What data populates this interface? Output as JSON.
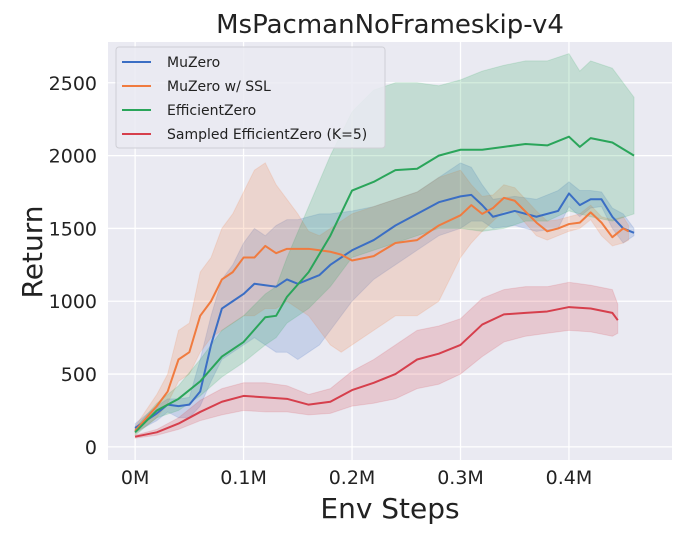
{
  "chart_data": {
    "type": "line",
    "title": "MsPacmanNoFrameskip-v4",
    "xlabel": "Env Steps",
    "ylabel": "Return",
    "xlim": [
      -0.025,
      0.495
    ],
    "ylim": [
      -90,
      2780
    ],
    "xticks": [
      0,
      0.1,
      0.2,
      0.3,
      0.4
    ],
    "xtick_labels": [
      "0M",
      "0.1M",
      "0.2M",
      "0.3M",
      "0.4M"
    ],
    "yticks": [
      0,
      500,
      1000,
      1500,
      2000,
      2500
    ],
    "ytick_labels": [
      "0",
      "500",
      "1000",
      "1500",
      "2000",
      "2500"
    ],
    "grid": true,
    "legend_placement": "top-left",
    "x_units": "million env steps",
    "point_format": [
      "x",
      "mean",
      "lower",
      "upper"
    ],
    "series": [
      {
        "name": "MuZero",
        "color": "#3b6ec4",
        "points": [
          [
            0,
            130,
            100,
            160
          ],
          [
            0.02,
            230,
            180,
            280
          ],
          [
            0.03,
            290,
            240,
            330
          ],
          [
            0.04,
            280,
            200,
            330
          ],
          [
            0.05,
            290,
            200,
            340
          ],
          [
            0.06,
            380,
            280,
            600
          ],
          [
            0.07,
            700,
            450,
            900
          ],
          [
            0.08,
            950,
            600,
            1150
          ],
          [
            0.09,
            1000,
            650,
            1250
          ],
          [
            0.1,
            1050,
            700,
            1400
          ],
          [
            0.11,
            1120,
            750,
            1500
          ],
          [
            0.12,
            1110,
            700,
            1450
          ],
          [
            0.13,
            1100,
            650,
            1520
          ],
          [
            0.14,
            1150,
            650,
            1560
          ],
          [
            0.15,
            1120,
            600,
            1560
          ],
          [
            0.16,
            1150,
            650,
            1580
          ],
          [
            0.17,
            1180,
            700,
            1600
          ],
          [
            0.18,
            1250,
            800,
            1600
          ],
          [
            0.2,
            1350,
            1000,
            1620
          ],
          [
            0.22,
            1420,
            1150,
            1650
          ],
          [
            0.24,
            1520,
            1250,
            1700
          ],
          [
            0.26,
            1600,
            1350,
            1750
          ],
          [
            0.28,
            1680,
            1450,
            1850
          ],
          [
            0.3,
            1720,
            1500,
            1950
          ],
          [
            0.31,
            1730,
            1550,
            1920
          ],
          [
            0.32,
            1660,
            1550,
            1800
          ],
          [
            0.33,
            1580,
            1500,
            1700
          ],
          [
            0.35,
            1620,
            1520,
            1720
          ],
          [
            0.37,
            1580,
            1480,
            1700
          ],
          [
            0.39,
            1620,
            1500,
            1760
          ],
          [
            0.4,
            1740,
            1650,
            1820
          ],
          [
            0.41,
            1660,
            1580,
            1760
          ],
          [
            0.42,
            1700,
            1640,
            1760
          ],
          [
            0.43,
            1700,
            1650,
            1750
          ],
          [
            0.44,
            1580,
            1500,
            1640
          ],
          [
            0.45,
            1500,
            1400,
            1600
          ],
          [
            0.46,
            1470,
            1450,
            1500
          ]
        ]
      },
      {
        "name": "MuZero w/ SSL",
        "color": "#f07b3f",
        "points": [
          [
            0,
            110,
            90,
            140
          ],
          [
            0.02,
            280,
            200,
            360
          ],
          [
            0.03,
            380,
            300,
            500
          ],
          [
            0.04,
            600,
            450,
            800
          ],
          [
            0.05,
            650,
            500,
            850
          ],
          [
            0.06,
            900,
            650,
            1200
          ],
          [
            0.07,
            1000,
            750,
            1300
          ],
          [
            0.08,
            1150,
            800,
            1500
          ],
          [
            0.09,
            1200,
            850,
            1600
          ],
          [
            0.1,
            1300,
            900,
            1750
          ],
          [
            0.11,
            1300,
            900,
            1900
          ],
          [
            0.12,
            1380,
            950,
            1950
          ],
          [
            0.13,
            1330,
            950,
            1800
          ],
          [
            0.14,
            1360,
            1000,
            1700
          ],
          [
            0.15,
            1360,
            950,
            1600
          ],
          [
            0.16,
            1360,
            900,
            1480
          ],
          [
            0.17,
            1350,
            800,
            1450
          ],
          [
            0.18,
            1340,
            700,
            1500
          ],
          [
            0.19,
            1320,
            650,
            1550
          ],
          [
            0.2,
            1280,
            700,
            1600
          ],
          [
            0.22,
            1310,
            800,
            1650
          ],
          [
            0.24,
            1400,
            900,
            1700
          ],
          [
            0.26,
            1420,
            900,
            1750
          ],
          [
            0.28,
            1520,
            1000,
            1850
          ],
          [
            0.3,
            1590,
            1300,
            1900
          ],
          [
            0.31,
            1660,
            1400,
            1800
          ],
          [
            0.32,
            1600,
            1480,
            1720
          ],
          [
            0.33,
            1640,
            1550,
            1730
          ],
          [
            0.34,
            1710,
            1620,
            1800
          ],
          [
            0.35,
            1690,
            1620,
            1780
          ],
          [
            0.37,
            1540,
            1450,
            1620
          ],
          [
            0.38,
            1480,
            1420,
            1550
          ],
          [
            0.39,
            1500,
            1450,
            1560
          ],
          [
            0.4,
            1530,
            1480,
            1580
          ],
          [
            0.41,
            1540,
            1500,
            1600
          ],
          [
            0.42,
            1610,
            1560,
            1660
          ],
          [
            0.43,
            1540,
            1450,
            1580
          ],
          [
            0.44,
            1440,
            1380,
            1560
          ],
          [
            0.45,
            1500,
            1400,
            1580
          ],
          [
            0.455,
            1480,
            1420,
            1520
          ]
        ]
      },
      {
        "name": "EfficientZero",
        "color": "#2aa55a",
        "points": [
          [
            0,
            100,
            80,
            130
          ],
          [
            0.02,
            250,
            200,
            300
          ],
          [
            0.04,
            330,
            250,
            420
          ],
          [
            0.06,
            450,
            350,
            600
          ],
          [
            0.08,
            620,
            480,
            800
          ],
          [
            0.1,
            720,
            580,
            900
          ],
          [
            0.12,
            890,
            700,
            1050
          ],
          [
            0.13,
            900,
            750,
            1100
          ],
          [
            0.14,
            1030,
            850,
            1300
          ],
          [
            0.16,
            1200,
            950,
            1650
          ],
          [
            0.18,
            1450,
            1100,
            2000
          ],
          [
            0.2,
            1760,
            1300,
            2300
          ],
          [
            0.22,
            1820,
            1350,
            2450
          ],
          [
            0.24,
            1900,
            1400,
            2500
          ],
          [
            0.26,
            1910,
            1450,
            2500
          ],
          [
            0.28,
            2000,
            1500,
            2480
          ],
          [
            0.3,
            2040,
            1500,
            2520
          ],
          [
            0.32,
            2040,
            1480,
            2580
          ],
          [
            0.34,
            2060,
            1500,
            2620
          ],
          [
            0.36,
            2080,
            1550,
            2650
          ],
          [
            0.38,
            2070,
            1550,
            2650
          ],
          [
            0.4,
            2130,
            1620,
            2700
          ],
          [
            0.41,
            2060,
            1600,
            2580
          ],
          [
            0.42,
            2120,
            1580,
            2650
          ],
          [
            0.44,
            2090,
            1550,
            2600
          ],
          [
            0.46,
            2000,
            1600,
            2400
          ]
        ]
      },
      {
        "name": "Sampled EfficientZero (K=5)",
        "color": "#d63f4c",
        "points": [
          [
            0,
            70,
            60,
            80
          ],
          [
            0.02,
            100,
            80,
            120
          ],
          [
            0.04,
            160,
            120,
            200
          ],
          [
            0.06,
            240,
            180,
            320
          ],
          [
            0.08,
            310,
            220,
            400
          ],
          [
            0.1,
            350,
            250,
            440
          ],
          [
            0.12,
            340,
            240,
            440
          ],
          [
            0.14,
            330,
            240,
            420
          ],
          [
            0.16,
            290,
            220,
            360
          ],
          [
            0.18,
            310,
            230,
            400
          ],
          [
            0.2,
            390,
            280,
            520
          ],
          [
            0.22,
            440,
            300,
            600
          ],
          [
            0.24,
            500,
            330,
            700
          ],
          [
            0.26,
            600,
            400,
            800
          ],
          [
            0.28,
            640,
            430,
            830
          ],
          [
            0.3,
            700,
            500,
            880
          ],
          [
            0.32,
            840,
            620,
            1020
          ],
          [
            0.34,
            910,
            720,
            1080
          ],
          [
            0.36,
            920,
            760,
            1100
          ],
          [
            0.38,
            930,
            780,
            1100
          ],
          [
            0.4,
            960,
            800,
            1130
          ],
          [
            0.42,
            950,
            790,
            1110
          ],
          [
            0.44,
            920,
            760,
            1080
          ],
          [
            0.445,
            870,
            780,
            980
          ]
        ]
      }
    ]
  }
}
